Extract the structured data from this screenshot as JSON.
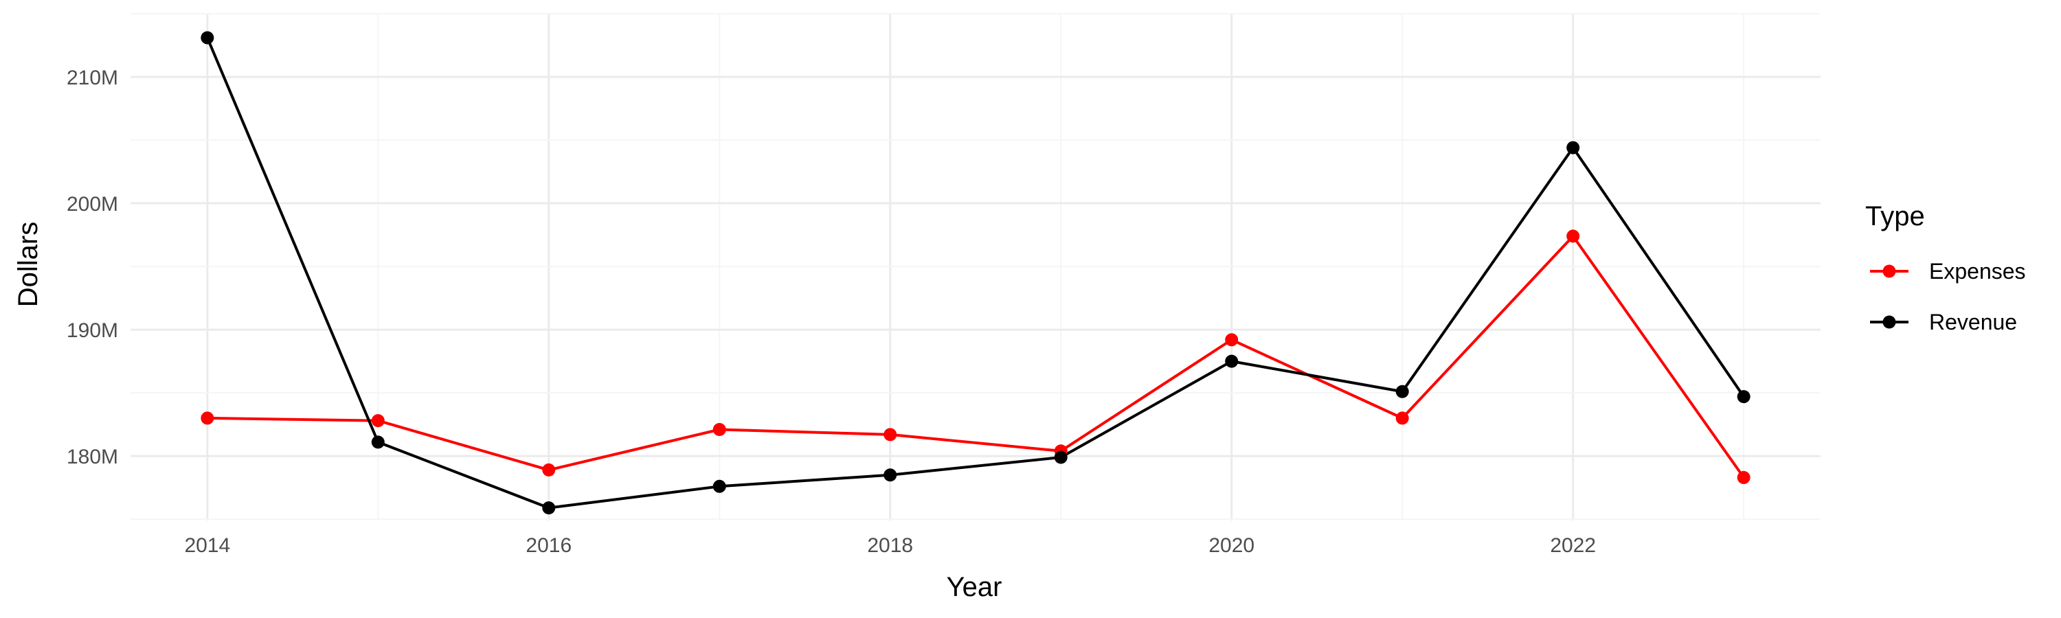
{
  "chart_data": {
    "type": "line",
    "xlabel": "Year",
    "ylabel": "Dollars",
    "x": [
      2014,
      2015,
      2016,
      2017,
      2018,
      2019,
      2020,
      2021,
      2022,
      2023
    ],
    "xlim": [
      2013.55,
      2023.45
    ],
    "ylim": [
      174.9,
      215.0
    ],
    "y_unit_suffix": "M",
    "x_ticks": [
      2014,
      2016,
      2018,
      2020,
      2022
    ],
    "x_tick_labels": [
      "2014",
      "2016",
      "2018",
      "2020",
      "2022"
    ],
    "y_ticks": [
      180,
      190,
      200,
      210
    ],
    "y_tick_labels": [
      "180M",
      "190M",
      "200M",
      "210M"
    ],
    "grid": true,
    "legend": {
      "title": "Type",
      "placement": "right"
    },
    "series": [
      {
        "name": "Expenses",
        "color": "#ff0000",
        "values": [
          183.0,
          182.8,
          178.9,
          182.1,
          181.7,
          180.4,
          189.2,
          183.0,
          197.4,
          178.3
        ]
      },
      {
        "name": "Revenue",
        "color": "#000000",
        "values": [
          213.1,
          181.1,
          175.9,
          177.6,
          178.5,
          179.9,
          187.5,
          185.1,
          204.4,
          184.7
        ]
      }
    ]
  }
}
